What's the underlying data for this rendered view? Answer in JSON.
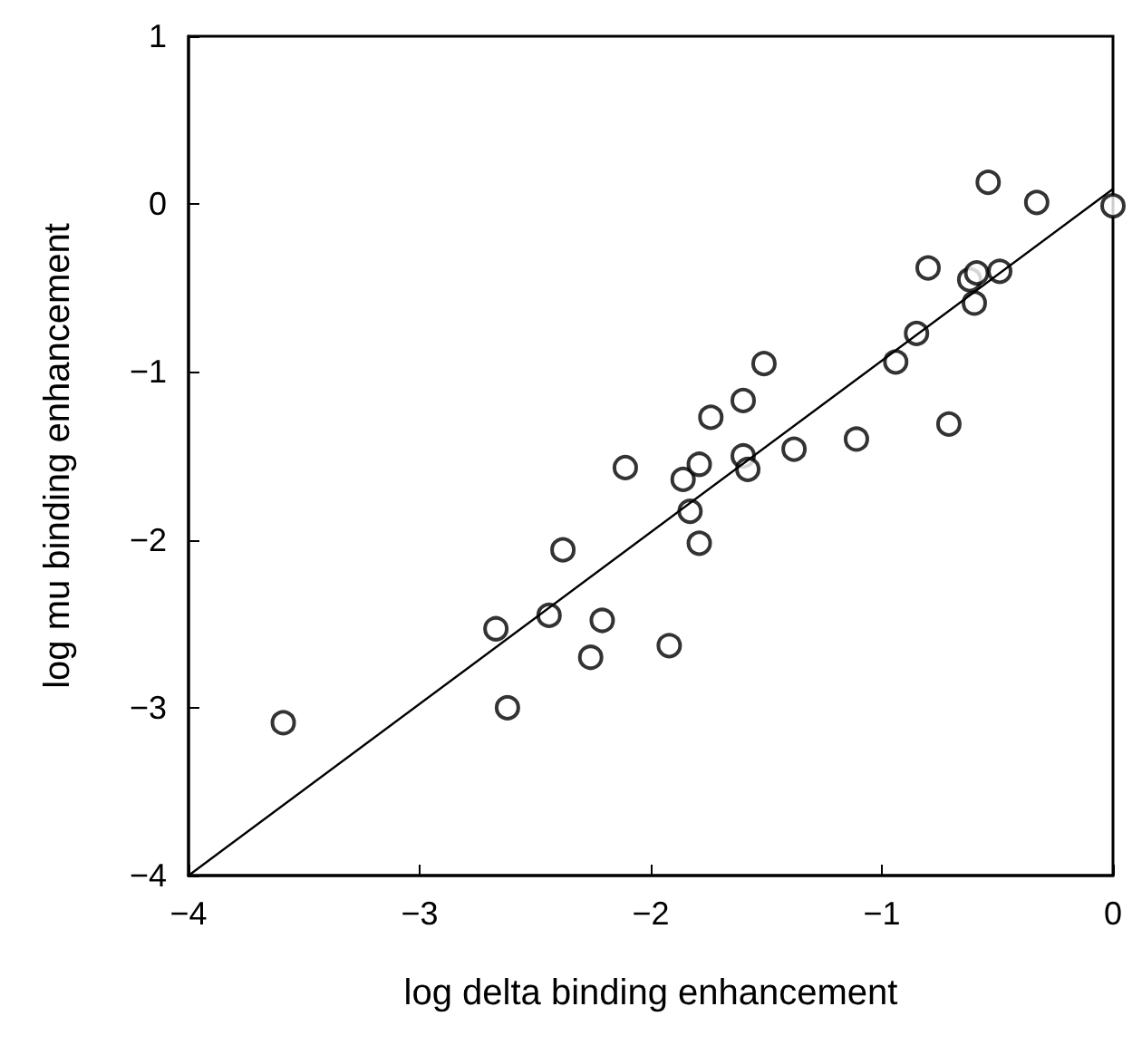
{
  "chart_data": {
    "type": "scatter",
    "xlabel": "log delta binding enhancement",
    "ylabel": "log mu binding enhancement",
    "xlim": [
      -4,
      0
    ],
    "ylim": [
      -4,
      1
    ],
    "xticks": [
      -4,
      -3,
      -2,
      -1,
      0
    ],
    "yticks": [
      -4,
      -3,
      -2,
      -1,
      0,
      1
    ],
    "grid": false,
    "marker": "circle",
    "series": [
      {
        "color": "#000000",
        "x": [
          -3.59,
          -2.67,
          -2.62,
          -2.44,
          -2.38,
          -2.26,
          -2.21,
          -2.11,
          -1.92,
          -1.86,
          -1.83,
          -1.79,
          -1.79,
          -1.74,
          -1.6,
          -1.6,
          -1.58,
          -1.51,
          -1.38,
          -1.11,
          -0.94,
          -0.85,
          -0.8,
          -0.71,
          -0.62,
          -0.6,
          -0.59,
          -0.49,
          -0.54,
          -0.33,
          0
        ],
        "values": [
          -3.09,
          -2.53,
          -3.0,
          -2.45,
          -2.06,
          -2.7,
          -2.48,
          -1.57,
          -2.63,
          -1.64,
          -1.83,
          -2.02,
          -1.55,
          -1.27,
          -1.17,
          -1.5,
          -1.58,
          -0.95,
          -1.46,
          -1.4,
          -0.94,
          -0.77,
          -0.38,
          -1.31,
          -0.45,
          -0.59,
          -0.41,
          -0.4,
          0.13,
          0.01,
          -0.01
        ]
      },
      {
        "type": "line",
        "color": "#000000",
        "marker": "none",
        "line_style": "solid",
        "x": [
          -4,
          0
        ],
        "values": [
          -4,
          0.09
        ]
      }
    ]
  }
}
